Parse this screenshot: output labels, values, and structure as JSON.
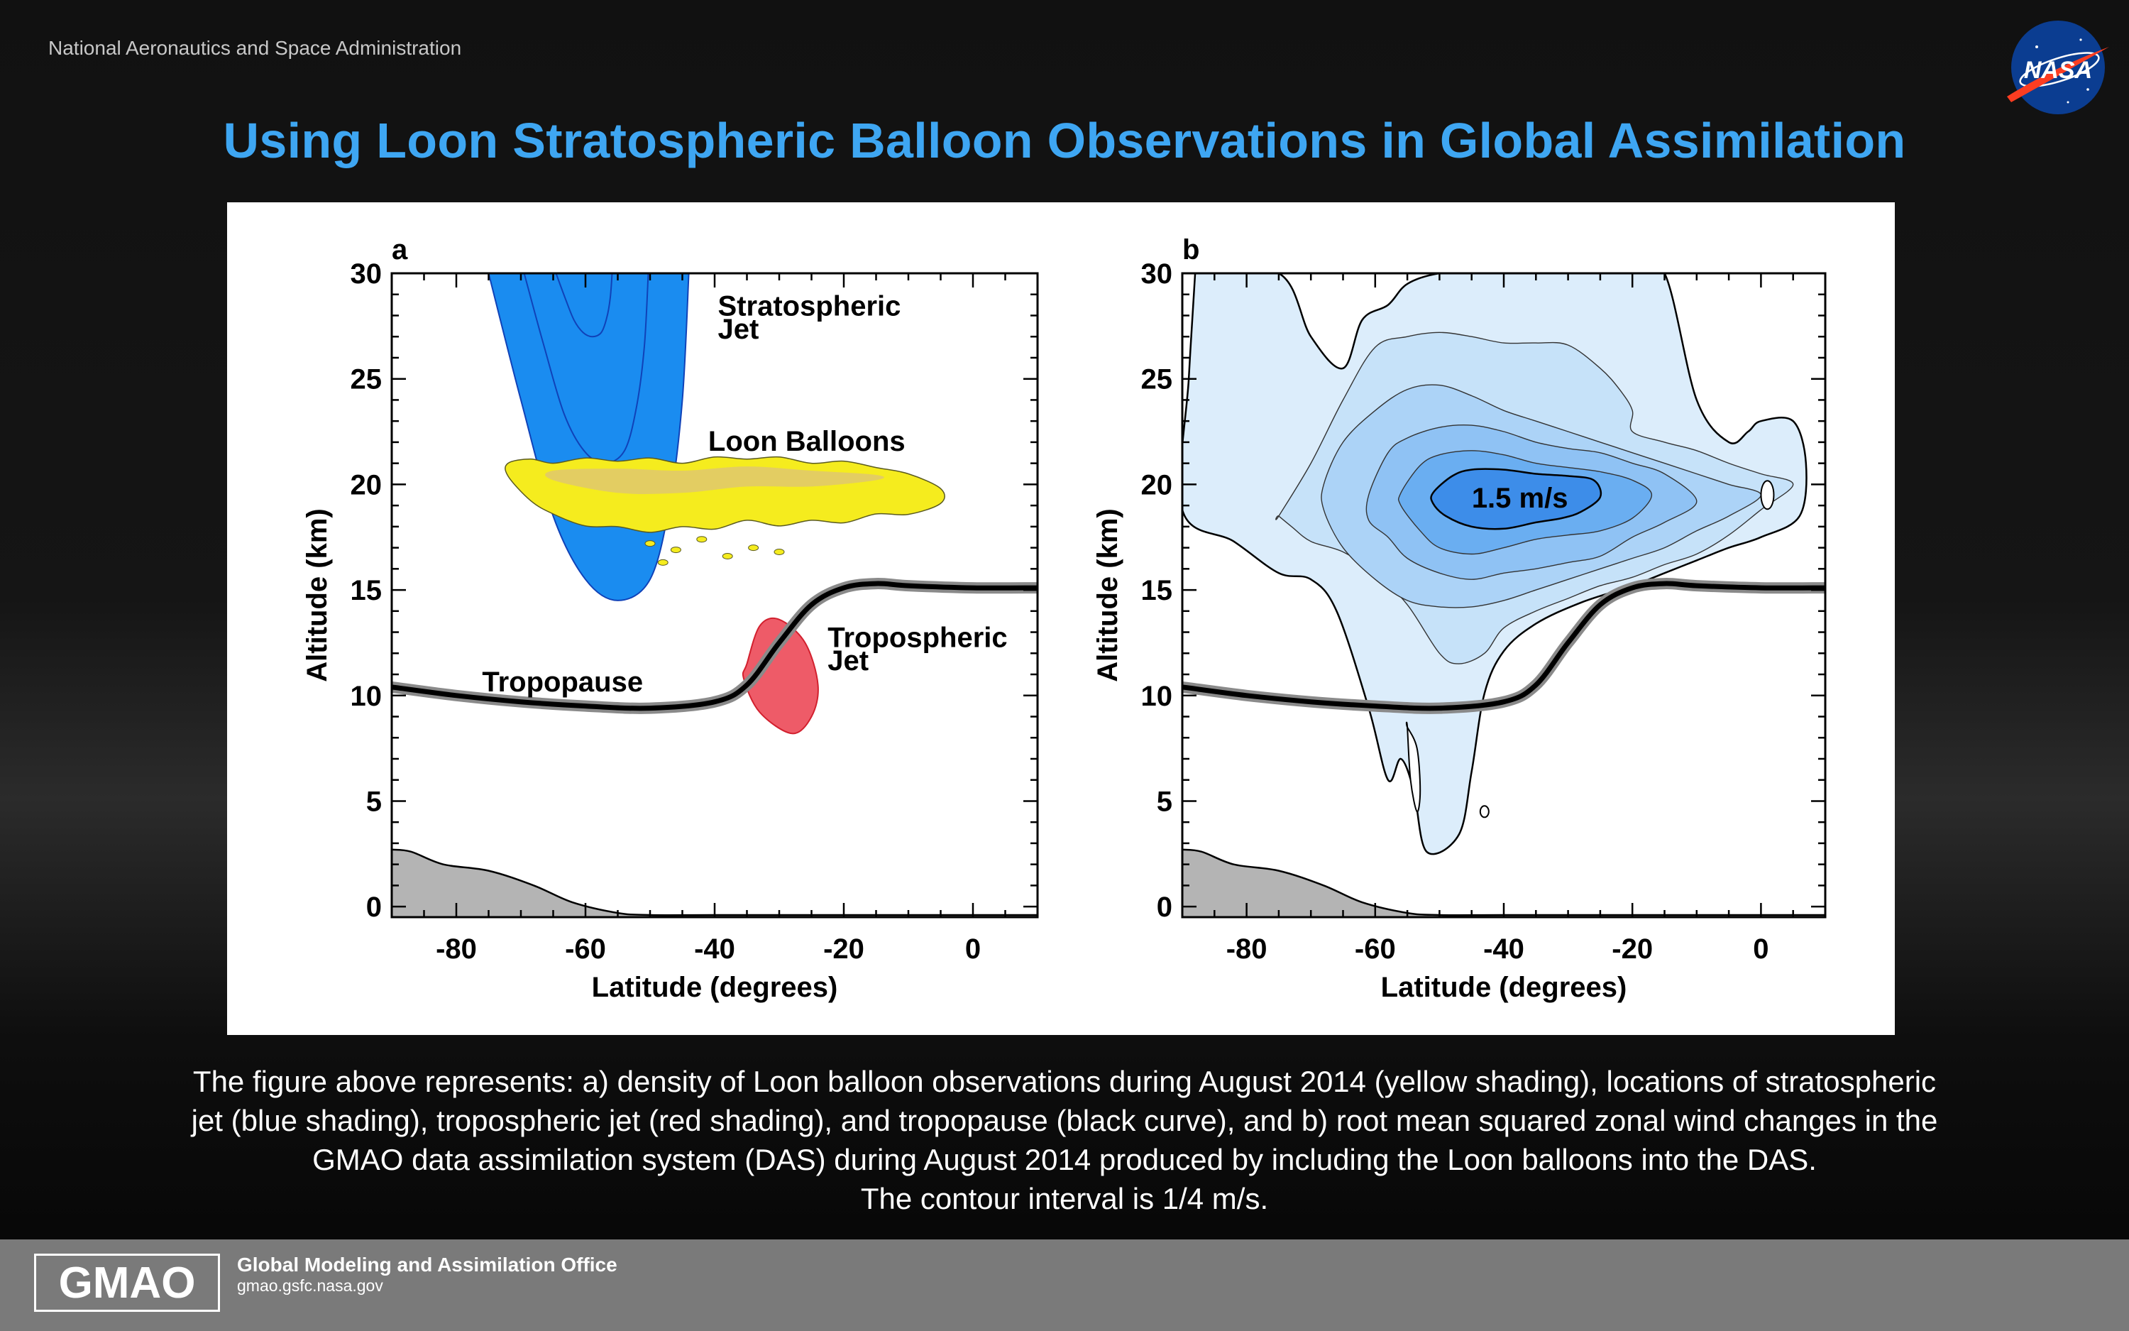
{
  "header": {
    "agency": "National Aeronautics and Space Administration",
    "logo_text": "NASA",
    "title": "Using Loon Stratospheric Balloon Observations in Global Assimilation"
  },
  "chart_data": [
    {
      "type": "area",
      "panel_label": "a",
      "xlabel": "Latitude (degrees)",
      "ylabel": "Altitude (km)",
      "xlim": [
        -90,
        10
      ],
      "ylim": [
        -0.5,
        30
      ],
      "xticks": [
        -80,
        -60,
        -40,
        -20,
        0
      ],
      "yticks": [
        0,
        5,
        10,
        15,
        20,
        25,
        30
      ],
      "annotations": {
        "stratospheric_jet": [
          "Stratospheric",
          "Jet"
        ],
        "loon_balloons": "Loon Balloons",
        "tropopause": "Tropopause",
        "tropospheric_jet": [
          "Tropospheric",
          "Jet"
        ]
      },
      "tropopause": {
        "x": [
          -90,
          -80,
          -70,
          -60,
          -50,
          -40,
          -35,
          -30,
          -25,
          -20,
          -15,
          -10,
          0,
          10
        ],
        "y": [
          10.4,
          10.0,
          9.7,
          9.5,
          9.4,
          9.7,
          10.5,
          12.5,
          14.3,
          15.1,
          15.3,
          15.2,
          15.1,
          15.1
        ]
      },
      "stratospheric_jet_outline": {
        "x": [
          -75,
          -70,
          -65,
          -60,
          -55,
          -50,
          -47,
          -45,
          -44
        ],
        "y": [
          30,
          24,
          18.5,
          15.5,
          14.5,
          15.5,
          19,
          24,
          30
        ]
      },
      "tropospheric_jet_outline": {
        "x": [
          -35,
          -33,
          -30,
          -26,
          -24,
          -25,
          -28,
          -33,
          -35.5
        ],
        "y": [
          11.5,
          13.3,
          13.6,
          12.5,
          10.5,
          9.0,
          8.2,
          9.2,
          10.8
        ]
      },
      "loon_balloons_density": {
        "x": [
          -72,
          -65,
          -55,
          -45,
          -35,
          -25,
          -15,
          -5
        ],
        "y_top": [
          21.0,
          21.0,
          21.1,
          21.0,
          21.2,
          21.0,
          20.8,
          19.8
        ],
        "y_bottom": [
          20.4,
          18.6,
          18.0,
          18.0,
          18.3,
          18.3,
          18.6,
          19.1
        ]
      },
      "orography": {
        "x": [
          -90,
          -87,
          -82,
          -75,
          -68,
          -62,
          -55,
          -50,
          -40,
          -20,
          0,
          10
        ],
        "y": [
          2.7,
          2.6,
          2.0,
          1.7,
          1.0,
          0.2,
          -0.3,
          -0.4,
          -0.4,
          -0.4,
          -0.4,
          -0.4
        ]
      },
      "colors": {
        "stratospheric_jet": "#1a8cf0",
        "tropospheric_jet": "#ee5b68",
        "loon_balloons": "#f5ec1e",
        "orography": "#b4b4b4",
        "stratospheric_label": "#0019d8",
        "tropospheric_label": "#ee1b24"
      }
    },
    {
      "type": "area",
      "panel_label": "b",
      "xlabel": "Latitude (degrees)",
      "ylabel": "Altitude (km)",
      "xlim": [
        -90,
        10
      ],
      "ylim": [
        -0.5,
        30
      ],
      "xticks": [
        -80,
        -60,
        -40,
        -20,
        0
      ],
      "yticks": [
        0,
        5,
        10,
        15,
        20,
        25,
        30
      ],
      "contour_interval": "1/4 m/s",
      "annotations": {
        "max_label": "1.5 m/s"
      },
      "contours_rms_zonal_wind_m_per_s": [
        {
          "level": 0.25,
          "outline": {
            "x": [
              -88,
              -75,
              -70,
              -65,
              -62,
              -58,
              -55,
              -50,
              -45,
              -40,
              -35,
              -30,
              -25,
              -22,
              -20,
              -15,
              -10,
              -5,
              -2,
              0,
              5,
              7,
              6,
              0,
              -5,
              -10,
              -15,
              -20,
              -28,
              -35,
              -40,
              -43,
              -45,
              -47,
              -52,
              -54,
              -56,
              -58,
              -61,
              -66,
              -70,
              -75,
              -82,
              -90,
              -89,
              -88
            ],
            "y": [
              30,
              30,
              27,
              25.5,
              27.8,
              28.5,
              29.5,
              30,
              30,
              30,
              30,
              30,
              30,
              30,
              30,
              30,
              24,
              22,
              22.5,
              23,
              23,
              21,
              18.5,
              17.5,
              17.0,
              16.4,
              15.8,
              15.2,
              14.4,
              13.4,
              12.1,
              10.1,
              6.4,
              3.4,
              2.6,
              5.5,
              7.0,
              6.0,
              9.4,
              14.0,
              15.5,
              15.8,
              17.3,
              18.8,
              25,
              30
            ]
          }
        },
        {
          "level": 0.5,
          "outline": {
            "x": [
              -75,
              -70,
              -65,
              -60,
              -55,
              -50,
              -45,
              -40,
              -35,
              -30,
              -25,
              -22,
              -20,
              -20,
              -15,
              -10,
              -5,
              0,
              5,
              0,
              -5,
              -10,
              -15,
              -20,
              -25,
              -30,
              -35,
              -40,
              -43,
              -47,
              -50,
              -55,
              -60,
              -65,
              -70,
              -73,
              -75
            ],
            "y": [
              18.5,
              21,
              24,
              26.5,
              27,
              27.2,
              27,
              26.7,
              26.7,
              26.6,
              25.5,
              24.5,
              23.5,
              22.5,
              22,
              21.6,
              21,
              20.5,
              20,
              18.8,
              17.6,
              16.7,
              16.2,
              15.6,
              15.2,
              14.6,
              14.0,
              13.2,
              12.0,
              11.5,
              12.0,
              14.3,
              15.8,
              16.8,
              17.3,
              18.0,
              18.5
            ]
          }
        },
        {
          "level": 0.75,
          "outline": {
            "x": [
              -68,
              -65,
              -60,
              -55,
              -50,
              -45,
              -40,
              -35,
              -30,
              -25,
              -20,
              -15,
              -10,
              -5,
              0,
              -5,
              -10,
              -15,
              -20,
              -25,
              -30,
              -35,
              -40,
              -45,
              -50,
              -55,
              -60,
              -65,
              -68
            ],
            "y": [
              20,
              22,
              23.5,
              24.5,
              24.7,
              24.2,
              23.5,
              23,
              22.5,
              22,
              21.5,
              21,
              20.5,
              20,
              19.5,
              18.5,
              17.8,
              17,
              16.5,
              16,
              15.5,
              15,
              14.5,
              14.2,
              14.2,
              14.5,
              15.5,
              17,
              18.8
            ]
          }
        },
        {
          "level": 1.0,
          "outline": {
            "x": [
              -61,
              -58,
              -55,
              -50,
              -45,
              -40,
              -35,
              -30,
              -25,
              -20,
              -15,
              -10,
              -15,
              -20,
              -25,
              -30,
              -35,
              -40,
              -45,
              -50,
              -55,
              -58,
              -61
            ],
            "y": [
              19.5,
              21.5,
              22.2,
              22.7,
              22.8,
              22.5,
              22.0,
              21.7,
              21.5,
              21,
              20.5,
              19.2,
              18.2,
              17.5,
              16.6,
              16.3,
              16.0,
              15.8,
              15.5,
              15.8,
              16.5,
              17.5,
              18.3
            ]
          }
        },
        {
          "level": 1.25,
          "outline": {
            "x": [
              -56,
              -53,
              -50,
              -45,
              -40,
              -35,
              -30,
              -25,
              -20,
              -17,
              -20,
              -25,
              -30,
              -35,
              -40,
              -45,
              -50,
              -53,
              -56
            ],
            "y": [
              19.6,
              20.9,
              21.4,
              21.6,
              21.4,
              21.0,
              20.8,
              20.6,
              20.2,
              19.5,
              18.4,
              17.8,
              17.6,
              17.4,
              17.0,
              16.7,
              17.0,
              17.8,
              19.0
            ]
          }
        },
        {
          "level": 1.5,
          "outline": {
            "x": [
              -51,
              -48,
              -45,
              -40,
              -35,
              -30,
              -26,
              -25,
              -28,
              -31,
              -35,
              -40,
              -45,
              -49,
              -51
            ],
            "y": [
              19.6,
              20.4,
              20.7,
              20.7,
              20.5,
              20.4,
              20.2,
              19.4,
              18.7,
              18.4,
              18.2,
              17.9,
              18.0,
              18.5,
              19.1
            ]
          }
        }
      ],
      "tropopause": {
        "x": [
          -90,
          -80,
          -70,
          -60,
          -50,
          -40,
          -35,
          -30,
          -25,
          -20,
          -15,
          -10,
          0,
          10
        ],
        "y": [
          10.4,
          10.0,
          9.7,
          9.5,
          9.4,
          9.7,
          10.5,
          12.5,
          14.3,
          15.1,
          15.3,
          15.2,
          15.1,
          15.1
        ]
      },
      "orography": {
        "x": [
          -90,
          -87,
          -82,
          -75,
          -68,
          -62,
          -55,
          -50,
          -40,
          -20,
          0,
          10
        ],
        "y": [
          2.7,
          2.6,
          2.0,
          1.7,
          1.0,
          0.2,
          -0.3,
          -0.4,
          -0.4,
          -0.4,
          -0.4,
          -0.4
        ]
      },
      "colors": {
        "fill_0.25": "#dcedfb",
        "fill_0.5": "#c6e2f9",
        "fill_0.75": "#acd3f7",
        "fill_1.0": "#8fc2f4",
        "fill_1.25": "#6aaef1",
        "fill_1.5": "#3d8de9",
        "orography": "#b4b4b4"
      }
    }
  ],
  "caption": [
    "The figure above represents: a) density of Loon balloon observations during August 2014 (yellow shading), locations of stratospheric",
    "jet (blue shading), tropospheric jet (red shading), and tropopause (black curve), and b) root mean squared zonal wind changes in the",
    "GMAO data assimilation system (DAS) during August 2014 produced by including the Loon balloons into the DAS.",
    "The contour interval is 1/4 m/s."
  ],
  "footer": {
    "logo": "GMAO",
    "office": "Global Modeling and Assimilation Office",
    "url": "gmao.gsfc.nasa.gov"
  }
}
